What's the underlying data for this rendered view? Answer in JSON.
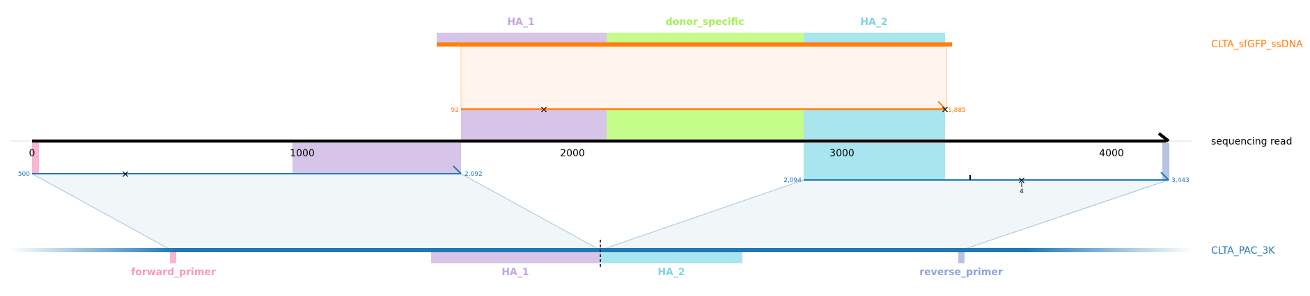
{
  "colors": {
    "ssdna": "#ff7f0e",
    "ssdna_fill": "#fff5ee",
    "reference": "#1f77b4",
    "reference_fill": "#f1f7f9",
    "read": "#000000",
    "ha1": "#d6c5e9",
    "ha1_label": "#c5a6e0",
    "donor": "#c5fd8b",
    "donor_label": "#a6ef5a",
    "ha2": "#a8e5ee",
    "ha2_label": "#7fd4e6",
    "forward_primer": "#f7b6d2",
    "forward_primer_label": "#f59ac4",
    "reverse_primer": "#b6c3e2",
    "reverse_primer_label": "#8fa3d2"
  },
  "labels": {
    "ssdna_name": "CLTA_sfGFP_ssDNA",
    "read_name": "sequencing read",
    "reference_name": "CLTA_PAC_3K"
  },
  "ssdna_features": [
    {
      "name": "HA_1",
      "color_key": "ha1",
      "label_color_key": "ha1_label"
    },
    {
      "name": "donor_specific",
      "color_key": "donor",
      "label_color_key": "donor_label"
    },
    {
      "name": "HA_2",
      "color_key": "ha2",
      "label_color_key": "ha2_label"
    }
  ],
  "reference_features": [
    {
      "name": "forward_primer",
      "color_key": "forward_primer",
      "label_color_key": "forward_primer_label"
    },
    {
      "name": "HA_1",
      "color_key": "ha1",
      "label_color_key": "ha1_label"
    },
    {
      "name": "HA_2",
      "color_key": "ha2",
      "label_color_key": "ha2_label"
    },
    {
      "name": "reverse_primer",
      "color_key": "reverse_primer",
      "label_color_key": "reverse_primer_label"
    }
  ],
  "read_axis": {
    "min": 0,
    "max": 4200,
    "ticks": [
      0,
      1000,
      2000,
      3000,
      4000
    ],
    "tick_labels": [
      "0",
      "1000",
      "2000",
      "3000",
      "4000"
    ]
  },
  "alignments": [
    {
      "target": "ssdna",
      "query_start": 1585,
      "query_end": 3390,
      "start_label": "92",
      "end_label": "1,885",
      "mismatch_positions": [
        1900,
        3390
      ]
    },
    {
      "target": "reference",
      "query_start": 0,
      "query_end": 1590,
      "start_label": "500",
      "end_label": "2,092",
      "mismatch_positions": [
        345
      ]
    },
    {
      "target": "reference",
      "query_start": 2850,
      "query_end": 4200,
      "start_label": "2,094",
      "end_label": "3,443",
      "mismatch_positions": [
        3650
      ],
      "insertion_positions": [
        3475
      ],
      "annotations": [
        {
          "position": 3650,
          "text": "4"
        }
      ]
    }
  ]
}
